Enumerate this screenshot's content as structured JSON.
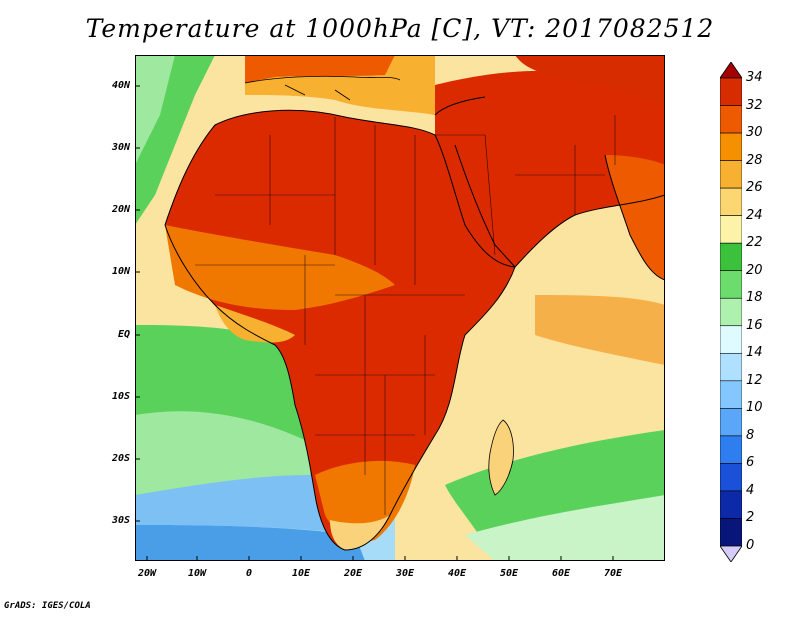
{
  "title": "Temperature at 1000hPa [C], VT: 2017082512",
  "credit": "GrADS: IGES/COLA",
  "lat_labels": [
    "40N",
    "30N",
    "20N",
    "10N",
    "EQ",
    "10S",
    "20S",
    "30S"
  ],
  "lon_labels": [
    "20W",
    "10W",
    "0",
    "10E",
    "20E",
    "30E",
    "40E",
    "50E",
    "60E",
    "70E"
  ],
  "colorbar": {
    "labels": [
      "34",
      "32",
      "30",
      "28",
      "26",
      "24",
      "22",
      "20",
      "18",
      "16",
      "14",
      "12",
      "10",
      "8",
      "6",
      "4",
      "2",
      "0"
    ],
    "colors": [
      "#a50000",
      "#d72c00",
      "#ee5a00",
      "#f59000",
      "#f8b030",
      "#fcd670",
      "#fdf3a8",
      "#3cc13c",
      "#6cdc6c",
      "#aef0ae",
      "#e0fbff",
      "#b0e0ff",
      "#84c6ff",
      "#5aa6f8",
      "#2f7ef0",
      "#1b50d8",
      "#0c2aa8",
      "#08167a",
      "#d6ccfa"
    ]
  },
  "palette": {
    "ocean_cool": "#3d9ae6",
    "ocean_green": "#5ad15a",
    "ocean_warm": "#fad27a",
    "land_hot": "#dc2a00",
    "land_warm": "#f07800",
    "outline": "#000000"
  }
}
